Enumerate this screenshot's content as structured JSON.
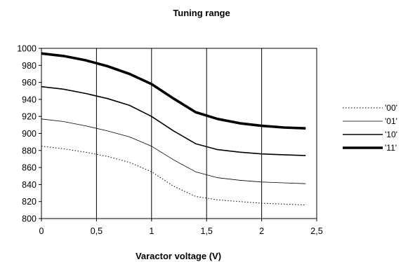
{
  "chart_data": {
    "type": "line",
    "title": "Tuning range",
    "xlabel": "Varactor voltage (V)",
    "ylabel": "",
    "xlim": [
      0,
      2.5
    ],
    "ylim": [
      800,
      1000
    ],
    "xticks": [
      0,
      0.5,
      1,
      1.5,
      2,
      2.5
    ],
    "xtick_labels": [
      "0",
      "0,5",
      "1",
      "1,5",
      "2",
      "2,5"
    ],
    "yticks": [
      800,
      820,
      840,
      860,
      880,
      900,
      920,
      940,
      960,
      980,
      1000
    ],
    "ytick_labels": [
      "800",
      "820",
      "840",
      "860",
      "880",
      "900",
      "920",
      "940",
      "960",
      "980",
      "1000"
    ],
    "grid": "vertical",
    "legend_position": "right",
    "series": [
      {
        "name": "'00'",
        "style": "dotted",
        "x": [
          0,
          0.2,
          0.4,
          0.6,
          0.8,
          1.0,
          1.2,
          1.4,
          1.6,
          1.8,
          2.0,
          2.2,
          2.4
        ],
        "values": [
          885,
          882,
          878,
          873,
          866,
          855,
          838,
          826,
          822,
          820,
          818,
          817,
          816
        ]
      },
      {
        "name": "'01'",
        "style": "thin",
        "x": [
          0,
          0.2,
          0.4,
          0.6,
          0.8,
          1.0,
          1.2,
          1.4,
          1.6,
          1.8,
          2.0,
          2.2,
          2.4
        ],
        "values": [
          917,
          914,
          909,
          903,
          896,
          885,
          869,
          855,
          848,
          845,
          843,
          842,
          841
        ]
      },
      {
        "name": "'10'",
        "style": "medium",
        "x": [
          0,
          0.2,
          0.4,
          0.6,
          0.8,
          1.0,
          1.2,
          1.4,
          1.6,
          1.8,
          2.0,
          2.2,
          2.4
        ],
        "values": [
          955,
          952,
          947,
          941,
          933,
          920,
          903,
          888,
          881,
          878,
          876,
          875,
          874
        ]
      },
      {
        "name": "'11'",
        "style": "thick",
        "x": [
          0,
          0.2,
          0.4,
          0.6,
          0.8,
          1.0,
          1.2,
          1.4,
          1.6,
          1.8,
          2.0,
          2.2,
          2.4
        ],
        "values": [
          994,
          991,
          986,
          979,
          970,
          958,
          941,
          925,
          917,
          912,
          909,
          907,
          906
        ]
      }
    ]
  }
}
